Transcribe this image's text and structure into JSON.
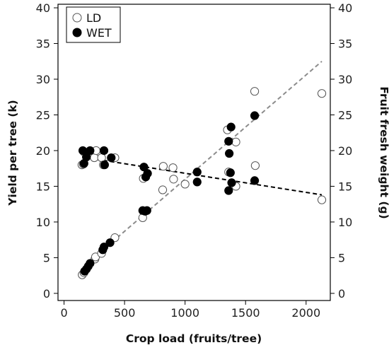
{
  "chart_data": {
    "type": "scatter",
    "xlabel": "Crop load (fruits/tree)",
    "ylabel_left": "Yield per tree (k)",
    "ylabel_right": "Fruit fresh weight (g)",
    "xlim": [
      -50,
      2200
    ],
    "ylim": [
      -1,
      40.5
    ],
    "xticks": [
      0,
      500,
      1000,
      1500,
      2000
    ],
    "yticks": [
      0,
      5,
      10,
      15,
      20,
      25,
      30,
      35,
      40
    ],
    "legend_position": "top-left",
    "series": [
      {
        "name": "LD",
        "marker": "open-circle",
        "yield_points": [
          {
            "x": 150,
            "y": 2.6
          },
          {
            "x": 165,
            "y": 2.9
          },
          {
            "x": 255,
            "y": 4.8
          },
          {
            "x": 260,
            "y": 5.1
          },
          {
            "x": 310,
            "y": 5.6
          },
          {
            "x": 420,
            "y": 7.8
          },
          {
            "x": 650,
            "y": 10.6
          },
          {
            "x": 1350,
            "y": 22.9
          },
          {
            "x": 1420,
            "y": 21.2
          },
          {
            "x": 1575,
            "y": 28.3
          },
          {
            "x": 2130,
            "y": 28.0
          }
        ],
        "weight_points": [
          {
            "x": 148,
            "y": 18.0
          },
          {
            "x": 160,
            "y": 18.1
          },
          {
            "x": 165,
            "y": 19.8
          },
          {
            "x": 250,
            "y": 19.0
          },
          {
            "x": 265,
            "y": 20.0
          },
          {
            "x": 310,
            "y": 19.0
          },
          {
            "x": 325,
            "y": 18.0
          },
          {
            "x": 420,
            "y": 19.0
          },
          {
            "x": 655,
            "y": 16.1
          },
          {
            "x": 815,
            "y": 14.5
          },
          {
            "x": 820,
            "y": 17.8
          },
          {
            "x": 900,
            "y": 17.6
          },
          {
            "x": 905,
            "y": 16.0
          },
          {
            "x": 1000,
            "y": 15.3
          },
          {
            "x": 1360,
            "y": 17.0
          },
          {
            "x": 1420,
            "y": 15.0
          },
          {
            "x": 1580,
            "y": 17.9
          },
          {
            "x": 2130,
            "y": 13.1
          }
        ]
      },
      {
        "name": "WET",
        "marker": "filled-circle",
        "yield_points": [
          {
            "x": 170,
            "y": 3.1
          },
          {
            "x": 185,
            "y": 3.4
          },
          {
            "x": 200,
            "y": 3.8
          },
          {
            "x": 215,
            "y": 4.2
          },
          {
            "x": 320,
            "y": 6.1
          },
          {
            "x": 330,
            "y": 6.5
          },
          {
            "x": 380,
            "y": 7.1
          },
          {
            "x": 650,
            "y": 11.6
          },
          {
            "x": 670,
            "y": 11.5
          },
          {
            "x": 685,
            "y": 11.6
          },
          {
            "x": 1360,
            "y": 21.3
          },
          {
            "x": 1380,
            "y": 23.3
          },
          {
            "x": 1575,
            "y": 24.9
          }
        ],
        "weight_points": [
          {
            "x": 155,
            "y": 20.0
          },
          {
            "x": 165,
            "y": 18.2
          },
          {
            "x": 185,
            "y": 19.1
          },
          {
            "x": 215,
            "y": 20.0
          },
          {
            "x": 330,
            "y": 20.0
          },
          {
            "x": 335,
            "y": 18.0
          },
          {
            "x": 390,
            "y": 19.0
          },
          {
            "x": 660,
            "y": 17.7
          },
          {
            "x": 675,
            "y": 16.3
          },
          {
            "x": 690,
            "y": 16.8
          },
          {
            "x": 1100,
            "y": 17.0
          },
          {
            "x": 1100,
            "y": 15.6
          },
          {
            "x": 1360,
            "y": 14.4
          },
          {
            "x": 1365,
            "y": 19.6
          },
          {
            "x": 1375,
            "y": 16.9
          },
          {
            "x": 1385,
            "y": 15.5
          },
          {
            "x": 1575,
            "y": 15.8
          }
        ]
      }
    ],
    "trendlines": [
      {
        "name": "yield-trend",
        "color": "#8c8c8c",
        "style": "dashed",
        "from": {
          "x": 350,
          "y": 6.5
        },
        "to": {
          "x": 2130,
          "y": 32.5
        }
      },
      {
        "name": "weight-trend",
        "color": "#000000",
        "style": "dashed",
        "from": {
          "x": 150,
          "y": 19.1
        },
        "to": {
          "x": 2130,
          "y": 13.8
        }
      }
    ],
    "colors": {
      "open_marker_stroke": "#555555",
      "filled_marker": "#000000"
    }
  }
}
